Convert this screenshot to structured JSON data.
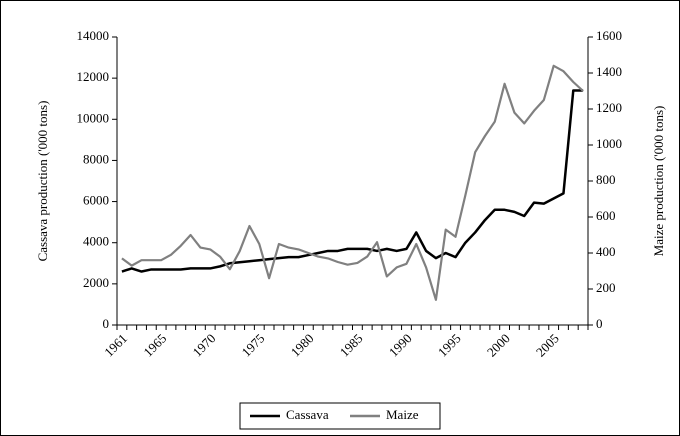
{
  "chart_data": {
    "type": "line",
    "y_label": "Cassava production ('000 tons)",
    "y2_label": "Maize production ('000 tons)",
    "categories": [
      "1961",
      null,
      null,
      null,
      "1965",
      null,
      null,
      null,
      null,
      "1970",
      null,
      null,
      null,
      null,
      "1975",
      null,
      null,
      null,
      null,
      "1980",
      null,
      null,
      null,
      null,
      "1985",
      null,
      null,
      null,
      null,
      "1990",
      null,
      null,
      null,
      null,
      "1995",
      null,
      null,
      null,
      null,
      "2000",
      null,
      null,
      null,
      null,
      "2005",
      null,
      null,
      null
    ],
    "series": [
      {
        "name": "Cassava",
        "color": "#000000",
        "axis": "y",
        "values": [
          2600,
          2750,
          2600,
          2700,
          2700,
          2700,
          2700,
          2750,
          2750,
          2750,
          2850,
          3000,
          3050,
          3100,
          3150,
          3200,
          3250,
          3300,
          3300,
          3400,
          3500,
          3600,
          3600,
          3700,
          3700,
          3700,
          3600,
          3700,
          3600,
          3700,
          4500,
          3600,
          3250,
          3500,
          3300,
          4000,
          4500,
          5100,
          5600,
          5600,
          5500,
          5300,
          5950,
          5900,
          6150,
          6400,
          11400,
          11400
        ]
      },
      {
        "name": "Maize",
        "color": "#808080",
        "axis": "y2",
        "values": [
          370,
          330,
          360,
          360,
          360,
          390,
          440,
          500,
          430,
          420,
          380,
          310,
          410,
          550,
          450,
          260,
          450,
          430,
          420,
          400,
          380,
          370,
          350,
          335,
          345,
          380,
          460,
          270,
          320,
          340,
          450,
          320,
          140,
          530,
          490,
          720,
          960,
          1050,
          1130,
          1340,
          1180,
          1120,
          1190,
          1250,
          1440,
          1410,
          1350,
          1300
        ]
      }
    ],
    "ylim": [
      0,
      14000
    ],
    "yticks": [
      0,
      2000,
      4000,
      6000,
      8000,
      10000,
      12000,
      14000
    ],
    "y2lim": [
      0,
      1600
    ],
    "y2ticks": [
      0,
      200,
      400,
      600,
      800,
      1000,
      1200,
      1400,
      1600
    ],
    "grid": false,
    "legend": "bottom"
  }
}
